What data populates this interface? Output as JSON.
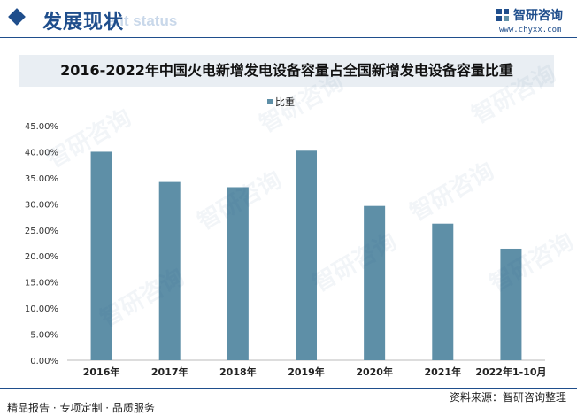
{
  "header": {
    "title": "发展现状",
    "ghost_text": "ent status"
  },
  "logo": {
    "name": "智研咨询",
    "url": "www.chyxx.com",
    "brand_color": "#1f4e8c"
  },
  "chart_title": "2016-2022年中国火电新增发电设备容量占全国新增发电设备容量比重",
  "chart_data": {
    "type": "bar",
    "categories": [
      "2016年",
      "2017年",
      "2018年",
      "2019年",
      "2020年",
      "2021年",
      "2022年1-10月"
    ],
    "series": [
      {
        "name": "比重",
        "values": [
          40.0,
          34.2,
          33.2,
          40.2,
          29.6,
          26.2,
          21.4
        ],
        "color": "#5e8fa7"
      }
    ],
    "yticks": [
      "0.00%",
      "5.00%",
      "10.00%",
      "15.00%",
      "20.00%",
      "25.00%",
      "30.00%",
      "35.00%",
      "40.00%",
      "45.00%"
    ],
    "ylim": [
      0,
      45
    ],
    "grid": false,
    "legend_position": "top-center"
  },
  "footer": {
    "left_text": "精品报告 · 专项定制 · 品质服务",
    "source": "资料来源：智研咨询整理"
  },
  "watermark_text": "智研咨询"
}
